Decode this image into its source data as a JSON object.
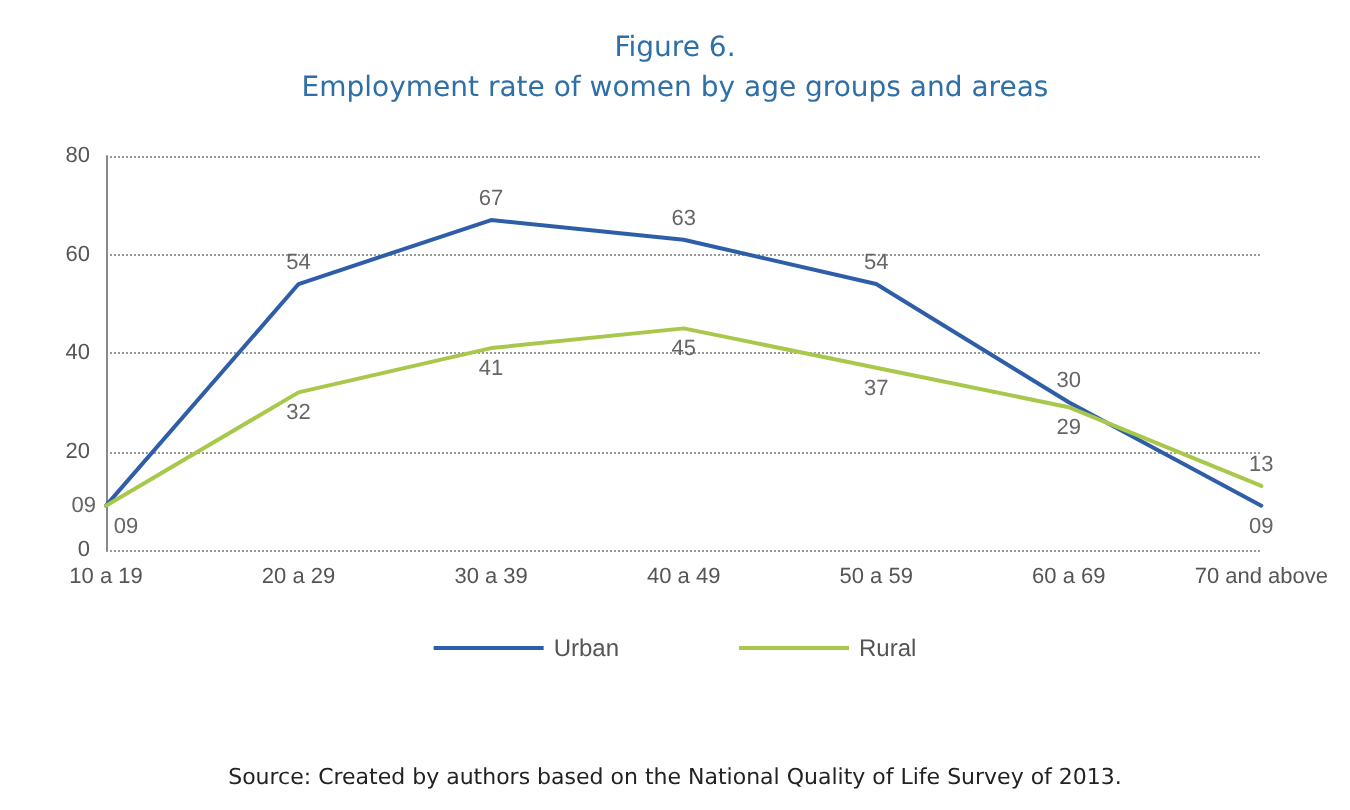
{
  "chart_data": {
    "type": "line",
    "title": "Figure 6.",
    "subtitle": "Employment rate of women by age groups and areas",
    "categories": [
      "10 a 19",
      "20 a 29",
      "30 a 39",
      "40 a 49",
      "50 a 59",
      "60 a 69",
      "70 and above"
    ],
    "series": [
      {
        "name": "Urban",
        "color": "#2f5ea8",
        "values": [
          9,
          54,
          67,
          63,
          54,
          30,
          9
        ],
        "value_labels": [
          "09",
          "54",
          "67",
          "63",
          "54",
          "30",
          "09"
        ]
      },
      {
        "name": "Rural",
        "color": "#a8c84c",
        "values": [
          9,
          32,
          41,
          45,
          37,
          29,
          13
        ],
        "value_labels": [
          "09",
          "32",
          "41",
          "45",
          "37",
          "29",
          "13"
        ]
      }
    ],
    "ylim": [
      0,
      80
    ],
    "yticks": [
      0,
      20,
      40,
      60,
      80
    ],
    "grid": "y",
    "legend": "bottom",
    "marker": "none",
    "line_style": "solid",
    "annotations": [
      "Source: Created by authors based on the National Quality of Life Survey of 2013."
    ]
  }
}
